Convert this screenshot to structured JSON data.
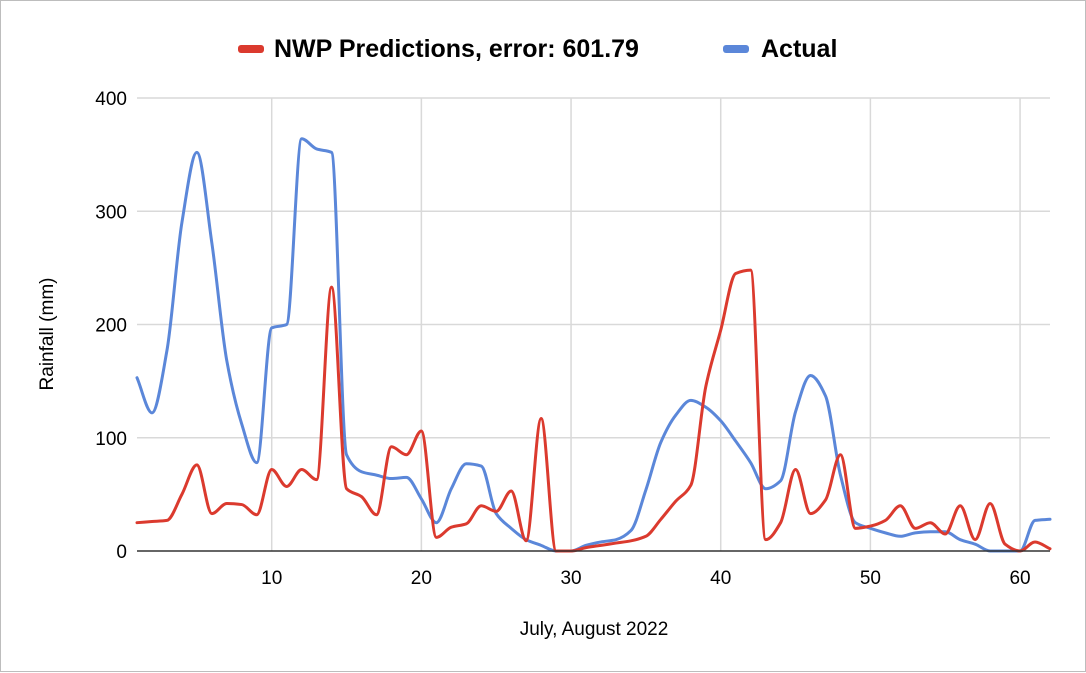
{
  "chart_data": {
    "type": "line",
    "xlabel": "July, August 2022",
    "ylabel": "Rainfall (mm)",
    "xlim": [
      1,
      62
    ],
    "ylim": [
      0,
      400
    ],
    "x_ticks": [
      10,
      20,
      30,
      40,
      50,
      60
    ],
    "y_ticks": [
      0,
      100,
      200,
      300,
      400
    ],
    "grid": true,
    "legend_position": "top",
    "series": [
      {
        "name": "NWP Predictions, error: 601.79",
        "color": "#db3a2e",
        "x": [
          1,
          2,
          3,
          4,
          5,
          6,
          7,
          8,
          9,
          10,
          11,
          12,
          13,
          14,
          15,
          16,
          17,
          18,
          19,
          20,
          21,
          22,
          23,
          24,
          25,
          26,
          27,
          28,
          29,
          30,
          31,
          32,
          33,
          34,
          35,
          36,
          37,
          38,
          39,
          40,
          41,
          42,
          43,
          44,
          45,
          46,
          47,
          48,
          49,
          50,
          51,
          52,
          53,
          54,
          55,
          56,
          57,
          58,
          59,
          60,
          61,
          62
        ],
        "values": [
          25,
          26,
          27,
          50,
          76,
          33,
          42,
          41,
          32,
          72,
          57,
          72,
          63,
          233,
          55,
          48,
          32,
          92,
          85,
          106,
          12,
          21,
          24,
          40,
          35,
          53,
          9,
          117,
          0,
          0,
          3,
          5,
          7,
          9,
          13,
          28,
          44,
          58,
          145,
          195,
          245,
          248,
          10,
          25,
          72,
          33,
          45,
          85,
          20,
          22,
          27,
          40,
          20,
          25,
          15,
          40,
          10,
          42,
          6,
          0,
          8,
          2
        ]
      },
      {
        "name": "Actual",
        "color": "#5b87d9",
        "x": [
          1,
          2,
          3,
          4,
          5,
          6,
          7,
          8,
          9,
          10,
          11,
          12,
          13,
          14,
          15,
          16,
          17,
          18,
          19,
          20,
          21,
          22,
          23,
          24,
          25,
          26,
          27,
          28,
          29,
          30,
          31,
          32,
          33,
          34,
          35,
          36,
          37,
          38,
          39,
          40,
          41,
          42,
          43,
          44,
          45,
          46,
          47,
          48,
          49,
          50,
          51,
          52,
          53,
          54,
          55,
          56,
          57,
          58,
          59,
          60,
          61,
          62
        ],
        "values": [
          153,
          122,
          177,
          290,
          352,
          272,
          168,
          112,
          78,
          197,
          200,
          364,
          355,
          352,
          85,
          70,
          67,
          64,
          65,
          46,
          25,
          55,
          77,
          75,
          33,
          20,
          10,
          5,
          0,
          0,
          5,
          8,
          10,
          18,
          54,
          96,
          120,
          133,
          127,
          115,
          97,
          78,
          55,
          62,
          123,
          155,
          137,
          67,
          25,
          20,
          16,
          13,
          16,
          17,
          17,
          10,
          6,
          0,
          0,
          0,
          27,
          28
        ]
      }
    ]
  }
}
